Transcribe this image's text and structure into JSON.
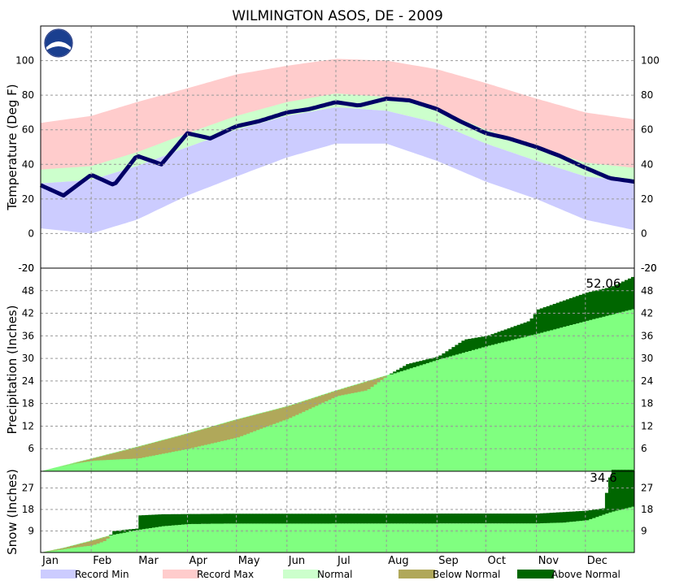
{
  "chart_data": {
    "type": "line",
    "title": "WILMINGTON   ASOS, DE - 2009",
    "months": [
      "Jan",
      "Feb",
      "Mar",
      "Apr",
      "May",
      "Jun",
      "Jul",
      "Aug",
      "Sep",
      "Oct",
      "Nov",
      "Dec"
    ],
    "legend": [
      {
        "label": "Record Min",
        "color": "#ccccff"
      },
      {
        "label": "Record Max",
        "color": "#ffcccc"
      },
      {
        "label": "Normal",
        "color": "#ccffcc"
      },
      {
        "label": "Below Normal",
        "color": "#b0a85a"
      },
      {
        "label": "Above Normal",
        "color": "#006600"
      }
    ],
    "panels": [
      {
        "id": "temperature",
        "ylabel": "Temperature (Deg F)",
        "ylim": [
          -20,
          120
        ],
        "yticks": [
          -20,
          0,
          20,
          40,
          60,
          80,
          100
        ],
        "grid": true,
        "series": [
          {
            "name": "Record Max",
            "color": "#ffcccc",
            "x": [
              1,
              32,
              60,
              91,
              121,
              152,
              182,
              213,
              244,
              274,
              305,
              335,
              365
            ],
            "y": [
              64,
              68,
              76,
              84,
              92,
              97,
              101,
              100,
              95,
              87,
              78,
              70,
              66
            ]
          },
          {
            "name": "Normal",
            "color": "#ccffcc",
            "x": [
              1,
              32,
              60,
              91,
              121,
              152,
              182,
              213,
              244,
              274,
              305,
              335,
              365
            ],
            "y": [
              33,
              35,
              43,
              54,
              64,
              72,
              77,
              75,
              68,
              56,
              46,
              37,
              34
            ]
          },
          {
            "name": "Record Min",
            "color": "#ccccff",
            "x": [
              1,
              32,
              60,
              91,
              121,
              152,
              182,
              213,
              244,
              274,
              305,
              335,
              365
            ],
            "y": [
              3,
              0,
              8,
              22,
              33,
              44,
              52,
              52,
              42,
              30,
              20,
              8,
              2
            ]
          },
          {
            "name": "Observed",
            "color": "#000066",
            "x": [
              1,
              15,
              32,
              46,
              60,
              75,
              91,
              105,
              121,
              135,
              152,
              166,
              182,
              196,
              213,
              227,
              244,
              258,
              274,
              288,
              305,
              319,
              335,
              350,
              365
            ],
            "y": [
              28,
              22,
              34,
              28,
              45,
              40,
              58,
              55,
              62,
              65,
              70,
              72,
              76,
              74,
              78,
              77,
              72,
              65,
              58,
              55,
              50,
              45,
              38,
              32,
              30
            ]
          }
        ]
      },
      {
        "id": "precipitation",
        "ylabel": "Precipitation (Inches)",
        "ylim": [
          0,
          54
        ],
        "yticks": [
          6,
          12,
          18,
          24,
          30,
          36,
          42,
          48
        ],
        "grid": true,
        "annotation": "52.06",
        "series": [
          {
            "name": "Normal",
            "color": "#80ff80",
            "x": [
              1,
              32,
              60,
              91,
              121,
              152,
              182,
              213,
              244,
              274,
              305,
              335,
              365
            ],
            "y": [
              0,
              3.4,
              6.5,
              10.1,
              13.8,
              17.3,
              21.5,
              25.5,
              29.7,
              33.3,
              36.6,
              40.0,
              43.3
            ]
          },
          {
            "name": "Observed",
            "color": "#006600",
            "x": [
              1,
              20,
              32,
              50,
              60,
              91,
              121,
              135,
              152,
              182,
              200,
              213,
              225,
              244,
              260,
              274,
              300,
              305,
              335,
              350,
              365
            ],
            "y": [
              0,
              2.0,
              2.8,
              3.2,
              3.4,
              6.0,
              9.0,
              11.3,
              14.0,
              20.0,
              21.5,
              25.5,
              28.5,
              30.5,
              35.0,
              36.0,
              40.0,
              43.0,
              47.5,
              49.0,
              52.06
            ]
          }
        ]
      },
      {
        "id": "snow",
        "ylabel": "Snow (Inches)",
        "ylim": [
          0,
          34
        ],
        "yticks": [
          9,
          18,
          27
        ],
        "grid": true,
        "annotation": "34.6",
        "series": [
          {
            "name": "Normal",
            "color": "#80ff80",
            "x": [
              1,
              15,
              32,
              45,
              60,
              75,
              91,
              110,
              305,
              320,
              335,
              350,
              365
            ],
            "y": [
              0,
              2,
              5,
              7.5,
              9.5,
              11,
              11.9,
              12.1,
              12.2,
              12.5,
              13.5,
              17,
              19.5
            ]
          },
          {
            "name": "Observed",
            "color": "#006600",
            "x": [
              1,
              20,
              32,
              40,
              45,
              59,
              60,
              75,
              91,
              110,
              305,
              335,
              345,
              350,
              365
            ],
            "y": [
              0,
              2,
              3,
              5,
              9,
              10,
              15.5,
              16,
              16.1,
              16.2,
              16.3,
              17.5,
              18.5,
              34.6,
              34.6
            ]
          }
        ]
      }
    ]
  }
}
